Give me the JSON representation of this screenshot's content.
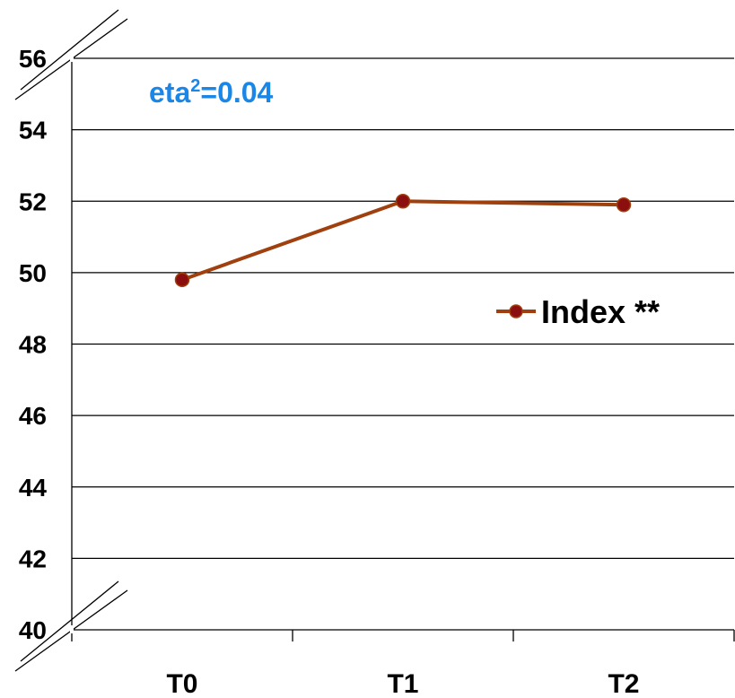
{
  "chart_data": {
    "type": "line",
    "categories": [
      "T0",
      "T1",
      "T2"
    ],
    "series": [
      {
        "name": "Index **",
        "values": [
          49.8,
          52.0,
          51.9
        ]
      }
    ],
    "ylim": [
      40,
      56
    ],
    "yticks": [
      "40",
      "42",
      "44",
      "46",
      "48",
      "50",
      "52",
      "54",
      "56"
    ],
    "grid": true,
    "legend_position": "right",
    "axis_break": true,
    "annotation": {
      "base": "eta",
      "superscript": "2",
      "rest": "=0.04"
    },
    "colors": {
      "series_line": "#a0400e",
      "series_marker": "#8b0f0f",
      "annotation": "#1a86e8",
      "grid": "#000000"
    }
  }
}
